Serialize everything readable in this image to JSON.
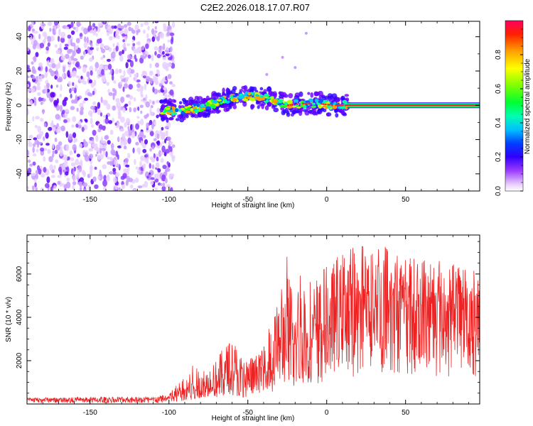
{
  "title": "C2E2.2026.018.17.07.R07",
  "chart_data": [
    {
      "type": "heatmap",
      "title": "C2E2.2026.018.17.07.R07",
      "xlabel": "Height of straight line (km)",
      "ylabel": "Frequency (Hz)",
      "xlim": [
        -190,
        97
      ],
      "ylim": [
        -50,
        49
      ],
      "xticks": [
        -150,
        -100,
        -50,
        0,
        50
      ],
      "yticks": [
        -40,
        -20,
        0,
        20,
        40
      ],
      "xtick_labels": [
        "-150",
        "-100",
        "-50",
        "0",
        "50"
      ],
      "ytick_labels": [
        "-40",
        "-20",
        "0",
        "20",
        "40"
      ],
      "colorbar": {
        "label": "Normalized spectral amplitude",
        "range": [
          0,
          1
        ],
        "ticks": [
          0.0,
          0.2,
          0.4,
          0.6,
          0.8
        ],
        "tick_labels": [
          "0.0",
          "0.2",
          "0.4",
          "0.6",
          "0.8"
        ]
      },
      "ridge": [
        {
          "x": -105,
          "y": -3
        },
        {
          "x": -95,
          "y": -3
        },
        {
          "x": -85,
          "y": -2
        },
        {
          "x": -75,
          "y": 0
        },
        {
          "x": -65,
          "y": 3
        },
        {
          "x": -55,
          "y": 5
        },
        {
          "x": -45,
          "y": 5
        },
        {
          "x": -35,
          "y": 4
        },
        {
          "x": -25,
          "y": 0
        },
        {
          "x": -15,
          "y": 1
        },
        {
          "x": -5,
          "y": 1
        },
        {
          "x": 5,
          "y": 0
        },
        {
          "x": 15,
          "y": 0
        },
        {
          "x": 50,
          "y": 0
        },
        {
          "x": 97,
          "y": 0
        }
      ],
      "noise_region_x": [
        -190,
        -100
      ]
    },
    {
      "type": "line",
      "xlabel": "Height of straight line (km)",
      "ylabel": "SNR (10 * v/v)",
      "xlim": [
        -190,
        97
      ],
      "ylim": [
        0,
        7800
      ],
      "xticks": [
        -150,
        -100,
        -50,
        0,
        50
      ],
      "yticks": [
        2000,
        4000,
        6000
      ],
      "xtick_labels": [
        "-150",
        "-100",
        "-50",
        "0",
        "50"
      ],
      "ytick_labels": [
        "2000",
        "4000",
        "6000"
      ],
      "series": [
        {
          "name": "SNR",
          "color": "#ee2222",
          "envelope_x": [
            -190,
            -150,
            -110,
            -100,
            -95,
            -90,
            -85,
            -80,
            -75,
            -70,
            -65,
            -60,
            -55,
            -50,
            -45,
            -40,
            -35,
            -30,
            -25,
            -23,
            -20,
            -15,
            -10,
            -5,
            0,
            5,
            10,
            15,
            20,
            25,
            30,
            35,
            40,
            45,
            50,
            55,
            60,
            65,
            70,
            75,
            80,
            85,
            90,
            97
          ],
          "baseline": [
            180,
            180,
            180,
            220,
            350,
            500,
            600,
            700,
            800,
            900,
            1200,
            1300,
            1000,
            1100,
            1200,
            1300,
            1700,
            2200,
            2500,
            2700,
            2600,
            2600,
            2800,
            3200,
            3500,
            3700,
            3900,
            4100,
            4300,
            4500,
            4600,
            4700,
            4700,
            4700,
            4600,
            4500,
            4400,
            4400,
            4300,
            4300,
            4200,
            4200,
            4100,
            4000
          ],
          "peak": [
            300,
            320,
            350,
            500,
            900,
            1400,
            1800,
            1600,
            1700,
            2200,
            2800,
            3300,
            2200,
            2000,
            2300,
            2600,
            4500,
            4700,
            7200,
            5500,
            5000,
            7300,
            5500,
            6000,
            6500,
            6700,
            7000,
            7200,
            7300,
            7500,
            7500,
            7700,
            7300,
            7000,
            6800,
            6800,
            6700,
            6800,
            6600,
            6700,
            6600,
            6500,
            6300,
            6100
          ]
        }
      ]
    }
  ]
}
